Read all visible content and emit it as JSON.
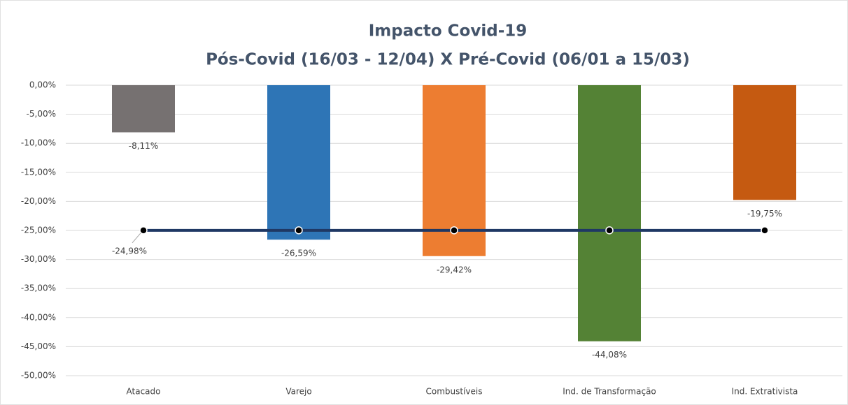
{
  "chart_data": {
    "type": "bar",
    "title": "Impacto Covid-19",
    "subtitle": "Pós-Covid (16/03 - 12/04) X Pré-Covid (06/01 a 15/03)",
    "categories": [
      "Atacado",
      "Varejo",
      "Combustíveis",
      "Ind. de Transformação",
      "Ind. Extrativista"
    ],
    "values": [
      -8.11,
      -26.59,
      -29.42,
      -44.08,
      -19.75
    ],
    "value_labels": [
      "-8,11%",
      "-26,59%",
      "-29,42%",
      "-44,08%",
      "-19,75%"
    ],
    "colors": [
      "#767171",
      "#2e75b6",
      "#ed7d31",
      "#548235",
      "#c55a11"
    ],
    "line": {
      "values": [
        -24.98,
        -24.98,
        -24.98,
        -24.98,
        -24.98
      ],
      "value_labels": [
        "-24,98%",
        null,
        null,
        null,
        null
      ],
      "color": "#1f3864"
    },
    "ylim": [
      -50,
      0
    ],
    "yticks": [
      {
        "value": 0,
        "label": "0,00%"
      },
      {
        "value": -5,
        "label": "-5,00%"
      },
      {
        "value": -10,
        "label": "-10,00%"
      },
      {
        "value": -15,
        "label": "-15,00%"
      },
      {
        "value": -20,
        "label": "-20,00%"
      },
      {
        "value": -25,
        "label": "-25,00%"
      },
      {
        "value": -30,
        "label": "-30,00%"
      },
      {
        "value": -35,
        "label": "-35,00%"
      },
      {
        "value": -40,
        "label": "-40,00%"
      },
      {
        "value": -45,
        "label": "-45,00%"
      },
      {
        "value": -50,
        "label": "-50,00%"
      }
    ],
    "grid": true
  }
}
